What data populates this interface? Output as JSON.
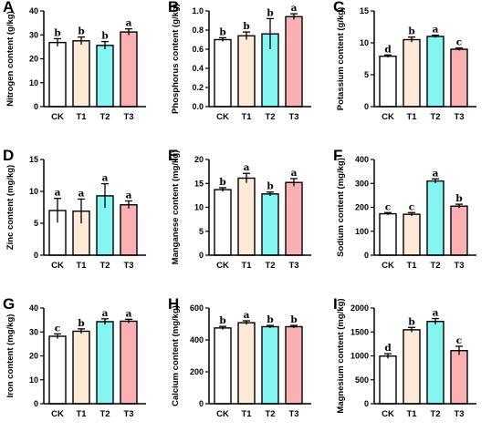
{
  "colors": {
    "CK": "#ffffff",
    "T1": "#fdebd7",
    "T2": "#85f5f2",
    "T3": "#fbb1b4"
  },
  "chart_data": [
    {
      "type": "bar",
      "panel": "A",
      "ylabel": "Nitrogen content (g/kg)",
      "categories": [
        "CK",
        "T1",
        "T2",
        "T3"
      ],
      "values": [
        26.8,
        27.5,
        25.6,
        31.2
      ],
      "errors": [
        1.6,
        1.6,
        1.6,
        1.3
      ],
      "letters": [
        "b",
        "b",
        "b",
        "a"
      ],
      "ylim": [
        0,
        40
      ],
      "yticks": [
        0,
        10,
        20,
        30,
        40
      ]
    },
    {
      "type": "bar",
      "panel": "B",
      "ylabel": "Phosphorus content (g/kg)",
      "categories": [
        "CK",
        "T1",
        "T2",
        "T3"
      ],
      "values": [
        0.7,
        0.74,
        0.76,
        0.94
      ],
      "errors": [
        0.02,
        0.04,
        0.16,
        0.03
      ],
      "letters": [
        "b",
        "b",
        "b",
        "a"
      ],
      "ylim": [
        0,
        1.0
      ],
      "yticks": [
        0.0,
        0.2,
        0.4,
        0.6,
        0.8,
        1.0
      ]
    },
    {
      "type": "bar",
      "panel": "C",
      "ylabel": "Potassium content (g/kg)",
      "categories": [
        "CK",
        "T1",
        "T2",
        "T3"
      ],
      "values": [
        7.9,
        10.5,
        11.0,
        9.0
      ],
      "errors": [
        0.2,
        0.4,
        0.2,
        0.2
      ],
      "letters": [
        "d",
        "b",
        "a",
        "c"
      ],
      "ylim": [
        0,
        15
      ],
      "yticks": [
        0,
        5,
        10,
        15
      ]
    },
    {
      "type": "bar",
      "panel": "D",
      "ylabel": "Zinc content (mg/kg)",
      "categories": [
        "CK",
        "T1",
        "T2",
        "T3"
      ],
      "values": [
        7.0,
        6.9,
        9.3,
        7.9
      ],
      "errors": [
        1.9,
        1.9,
        1.9,
        0.6
      ],
      "letters": [
        "a",
        "a",
        "a",
        "a"
      ],
      "ylim": [
        0,
        15
      ],
      "yticks": [
        0,
        5,
        10,
        15
      ]
    },
    {
      "type": "bar",
      "panel": "E",
      "ylabel": "Manganese content (mg/kg)",
      "categories": [
        "CK",
        "T1",
        "T2",
        "T3"
      ],
      "values": [
        13.7,
        16.1,
        12.8,
        15.2
      ],
      "errors": [
        0.4,
        1.0,
        0.4,
        0.8
      ],
      "letters": [
        "b",
        "a",
        "b",
        "a"
      ],
      "ylim": [
        0,
        20
      ],
      "yticks": [
        0,
        5,
        10,
        15,
        20
      ]
    },
    {
      "type": "bar",
      "panel": "F",
      "ylabel": "Sodium content (mg/kg)",
      "categories": [
        "CK",
        "T1",
        "T2",
        "T3"
      ],
      "values": [
        173,
        171,
        310,
        205
      ],
      "errors": [
        5,
        7,
        9,
        8
      ],
      "letters": [
        "c",
        "c",
        "a",
        "b"
      ],
      "ylim": [
        0,
        400
      ],
      "yticks": [
        0,
        100,
        200,
        300,
        400
      ]
    },
    {
      "type": "bar",
      "panel": "G",
      "ylabel": "Iron content (mg/kg)",
      "categories": [
        "CK",
        "T1",
        "T2",
        "T3"
      ],
      "values": [
        28.2,
        30.3,
        34.3,
        34.5
      ],
      "errors": [
        1.0,
        1.0,
        1.2,
        0.8
      ],
      "letters": [
        "c",
        "b",
        "a",
        "a"
      ],
      "ylim": [
        0,
        40
      ],
      "yticks": [
        0,
        10,
        20,
        30,
        40
      ]
    },
    {
      "type": "bar",
      "panel": "H",
      "ylabel": "Calcium content (mg/kg)",
      "categories": [
        "CK",
        "T1",
        "T2",
        "T3"
      ],
      "values": [
        475,
        508,
        483,
        483
      ],
      "errors": [
        10,
        12,
        8,
        8
      ],
      "letters": [
        "b",
        "a",
        "b",
        "b"
      ],
      "ylim": [
        0,
        600
      ],
      "yticks": [
        0,
        200,
        400,
        600
      ]
    },
    {
      "type": "bar",
      "panel": "I",
      "ylabel": "Magnesium content (mg/kg)",
      "categories": [
        "CK",
        "T1",
        "T2",
        "T3"
      ],
      "values": [
        995,
        1545,
        1720,
        1110
      ],
      "errors": [
        50,
        50,
        60,
        90
      ],
      "letters": [
        "d",
        "b",
        "a",
        "c"
      ],
      "ylim": [
        0,
        2000
      ],
      "yticks": [
        0,
        500,
        1000,
        1500,
        2000
      ]
    }
  ]
}
